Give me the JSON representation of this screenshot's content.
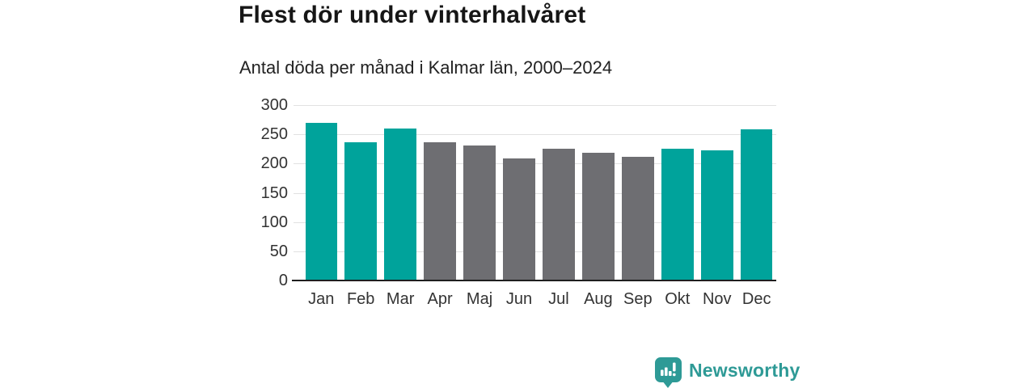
{
  "header": {
    "title": "Flest dör under vinterhalvåret",
    "subtitle": "Antal döda per månad i Kalmar län, 2000–2024"
  },
  "chart_data": {
    "type": "bar",
    "title": "Flest dör under vinterhalvåret",
    "subtitle": "Antal döda per månad i Kalmar län, 2000–2024",
    "categories": [
      "Jan",
      "Feb",
      "Mar",
      "Apr",
      "Maj",
      "Jun",
      "Jul",
      "Aug",
      "Sep",
      "Okt",
      "Nov",
      "Dec"
    ],
    "values": [
      270,
      237,
      260,
      236,
      231,
      209,
      226,
      218,
      212,
      226,
      222,
      258
    ],
    "highlighted": [
      true,
      true,
      true,
      false,
      false,
      false,
      false,
      false,
      false,
      true,
      true,
      true
    ],
    "highlight_color": "#00a39b",
    "base_color": "#6e6e72",
    "xlabel": "",
    "ylabel": "",
    "ylim": [
      0,
      300
    ],
    "yticks": [
      0,
      50,
      100,
      150,
      200,
      250,
      300
    ],
    "grid": true,
    "legend": "none"
  },
  "branding": {
    "logo_text": "Newsworthy",
    "logo_icon": "newsworthy-speech-bubble-bar-chart-icon",
    "logo_color": "#2e9a96"
  },
  "colors": {
    "background": "#ffffff",
    "highlight": "#00a39b",
    "base": "#6e6e72",
    "gridline": "#e1e1e1",
    "axis": "#1f1f1f",
    "title_text": "#161616",
    "subtitle_text": "#222222",
    "tick_text": "#333333"
  }
}
